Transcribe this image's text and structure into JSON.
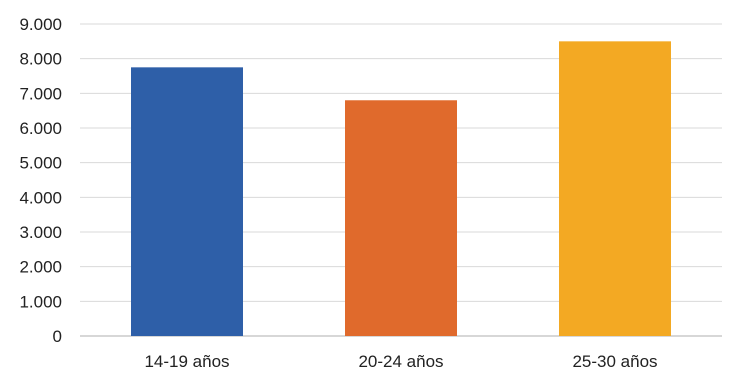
{
  "chart_data": {
    "type": "bar",
    "categories": [
      "14-19 años",
      "20-24 años",
      "25-30 años"
    ],
    "values": [
      7750,
      6800,
      8500
    ],
    "colors": [
      "#2E5FA8",
      "#E06A2C",
      "#F3A923"
    ],
    "ylim": [
      0,
      9000
    ],
    "yticks": [
      0,
      1000,
      2000,
      3000,
      4000,
      5000,
      6000,
      7000,
      8000,
      9000
    ],
    "ytick_labels": [
      "0",
      "1.000",
      "2.000",
      "3.000",
      "4.000",
      "5.000",
      "6.000",
      "7.000",
      "8.000",
      "9.000"
    ],
    "grid": true,
    "legend": "none",
    "title": "",
    "xlabel": "",
    "ylabel": ""
  }
}
